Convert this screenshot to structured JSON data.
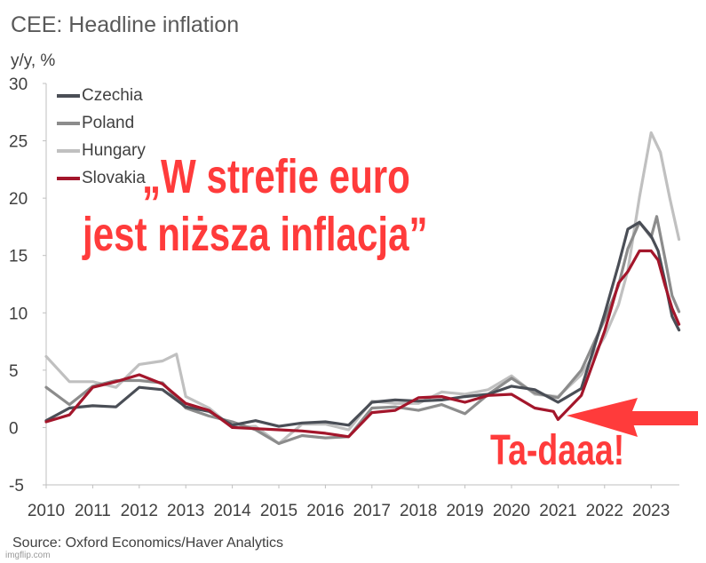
{
  "title": "CEE: Headline inflation",
  "source": "Source: Oxford Economics/Haver Analytics",
  "watermark": "imgflip.com",
  "overlay": {
    "line1": "„W strefie euro",
    "line2": "jest niższa inflacja”",
    "tadaa": "Ta-daaa!",
    "arrow_color": "#ff3b3b"
  },
  "chart_data": {
    "type": "line",
    "title": "CEE: Headline inflation",
    "ylabel": "y/y, %",
    "xlabel": "",
    "ylim": [
      -5,
      30
    ],
    "yticks": [
      -5,
      0,
      5,
      10,
      15,
      20,
      25,
      30
    ],
    "xlim": [
      2010,
      2023.6
    ],
    "xticks": [
      "2010",
      "2011",
      "2012",
      "2013",
      "2014",
      "2015",
      "2016",
      "2017",
      "2018",
      "2019",
      "2020",
      "2021",
      "2022",
      "2023"
    ],
    "grid": false,
    "legend_position": "top-left",
    "series": [
      {
        "name": "Czechia",
        "color": "#4a4e56",
        "points": [
          [
            2010.0,
            0.6
          ],
          [
            2010.5,
            1.7
          ],
          [
            2011.0,
            1.9
          ],
          [
            2011.5,
            1.8
          ],
          [
            2012.0,
            3.5
          ],
          [
            2012.5,
            3.3
          ],
          [
            2013.0,
            1.8
          ],
          [
            2013.5,
            1.4
          ],
          [
            2014.0,
            0.2
          ],
          [
            2014.5,
            0.6
          ],
          [
            2015.0,
            0.1
          ],
          [
            2015.5,
            0.4
          ],
          [
            2016.0,
            0.5
          ],
          [
            2016.5,
            0.2
          ],
          [
            2017.0,
            2.2
          ],
          [
            2017.5,
            2.4
          ],
          [
            2018.0,
            2.3
          ],
          [
            2018.5,
            2.4
          ],
          [
            2019.0,
            2.7
          ],
          [
            2019.5,
            2.9
          ],
          [
            2020.0,
            3.6
          ],
          [
            2020.5,
            3.3
          ],
          [
            2021.0,
            2.2
          ],
          [
            2021.5,
            3.4
          ],
          [
            2022.0,
            9.9
          ],
          [
            2022.3,
            14.2
          ],
          [
            2022.5,
            17.3
          ],
          [
            2022.75,
            17.9
          ],
          [
            2023.0,
            16.7
          ],
          [
            2023.15,
            15.4
          ],
          [
            2023.3,
            12.7
          ],
          [
            2023.45,
            9.7
          ],
          [
            2023.6,
            8.5
          ]
        ]
      },
      {
        "name": "Poland",
        "color": "#8c8c8c",
        "points": [
          [
            2010.0,
            3.5
          ],
          [
            2010.5,
            2.0
          ],
          [
            2011.0,
            3.6
          ],
          [
            2011.5,
            4.1
          ],
          [
            2012.0,
            4.1
          ],
          [
            2012.5,
            3.9
          ],
          [
            2013.0,
            1.7
          ],
          [
            2013.5,
            1.0
          ],
          [
            2014.0,
            0.5
          ],
          [
            2014.5,
            -0.2
          ],
          [
            2015.0,
            -1.4
          ],
          [
            2015.5,
            -0.7
          ],
          [
            2016.0,
            -0.9
          ],
          [
            2016.5,
            -0.8
          ],
          [
            2017.0,
            1.7
          ],
          [
            2017.5,
            1.8
          ],
          [
            2018.0,
            1.5
          ],
          [
            2018.5,
            2.0
          ],
          [
            2019.0,
            1.2
          ],
          [
            2019.5,
            2.9
          ],
          [
            2020.0,
            4.3
          ],
          [
            2020.5,
            3.0
          ],
          [
            2021.0,
            2.6
          ],
          [
            2021.5,
            5.0
          ],
          [
            2022.0,
            9.4
          ],
          [
            2022.3,
            12.4
          ],
          [
            2022.5,
            15.6
          ],
          [
            2022.75,
            17.9
          ],
          [
            2023.0,
            16.6
          ],
          [
            2023.12,
            18.4
          ],
          [
            2023.3,
            14.7
          ],
          [
            2023.45,
            11.5
          ],
          [
            2023.6,
            10.1
          ]
        ]
      },
      {
        "name": "Hungary",
        "color": "#c0c0c0",
        "points": [
          [
            2010.0,
            6.2
          ],
          [
            2010.5,
            4.0
          ],
          [
            2011.0,
            4.0
          ],
          [
            2011.5,
            3.5
          ],
          [
            2012.0,
            5.5
          ],
          [
            2012.5,
            5.8
          ],
          [
            2012.8,
            6.4
          ],
          [
            2013.0,
            2.7
          ],
          [
            2013.5,
            1.7
          ],
          [
            2014.0,
            0.0
          ],
          [
            2014.5,
            0.1
          ],
          [
            2015.0,
            -1.4
          ],
          [
            2015.5,
            0.3
          ],
          [
            2016.0,
            0.3
          ],
          [
            2016.5,
            -0.2
          ],
          [
            2017.0,
            2.3
          ],
          [
            2017.5,
            2.1
          ],
          [
            2018.0,
            2.1
          ],
          [
            2018.5,
            3.1
          ],
          [
            2019.0,
            2.9
          ],
          [
            2019.5,
            3.3
          ],
          [
            2020.0,
            4.5
          ],
          [
            2020.5,
            2.9
          ],
          [
            2021.0,
            2.7
          ],
          [
            2021.5,
            4.6
          ],
          [
            2022.0,
            7.9
          ],
          [
            2022.3,
            10.7
          ],
          [
            2022.5,
            13.7
          ],
          [
            2022.75,
            20.1
          ],
          [
            2023.0,
            25.7
          ],
          [
            2023.2,
            24.0
          ],
          [
            2023.4,
            20.0
          ],
          [
            2023.6,
            16.4
          ]
        ]
      },
      {
        "name": "Slovakia",
        "color": "#a3162b",
        "points": [
          [
            2010.0,
            0.5
          ],
          [
            2010.5,
            1.1
          ],
          [
            2011.0,
            3.5
          ],
          [
            2011.5,
            4.0
          ],
          [
            2012.0,
            4.6
          ],
          [
            2012.5,
            3.8
          ],
          [
            2013.0,
            2.1
          ],
          [
            2013.5,
            1.5
          ],
          [
            2014.0,
            0.0
          ],
          [
            2014.5,
            -0.1
          ],
          [
            2015.0,
            -0.2
          ],
          [
            2015.5,
            -0.3
          ],
          [
            2016.0,
            -0.5
          ],
          [
            2016.5,
            -0.8
          ],
          [
            2017.0,
            1.3
          ],
          [
            2017.5,
            1.5
          ],
          [
            2018.0,
            2.6
          ],
          [
            2018.5,
            2.7
          ],
          [
            2019.0,
            2.2
          ],
          [
            2019.5,
            2.8
          ],
          [
            2020.0,
            2.9
          ],
          [
            2020.5,
            1.7
          ],
          [
            2020.9,
            1.4
          ],
          [
            2021.0,
            0.7
          ],
          [
            2021.5,
            2.8
          ],
          [
            2022.0,
            8.4
          ],
          [
            2022.3,
            12.6
          ],
          [
            2022.5,
            13.6
          ],
          [
            2022.75,
            15.4
          ],
          [
            2023.0,
            15.4
          ],
          [
            2023.15,
            14.6
          ],
          [
            2023.3,
            12.4
          ],
          [
            2023.45,
            10.4
          ],
          [
            2023.6,
            9.0
          ]
        ]
      }
    ]
  }
}
